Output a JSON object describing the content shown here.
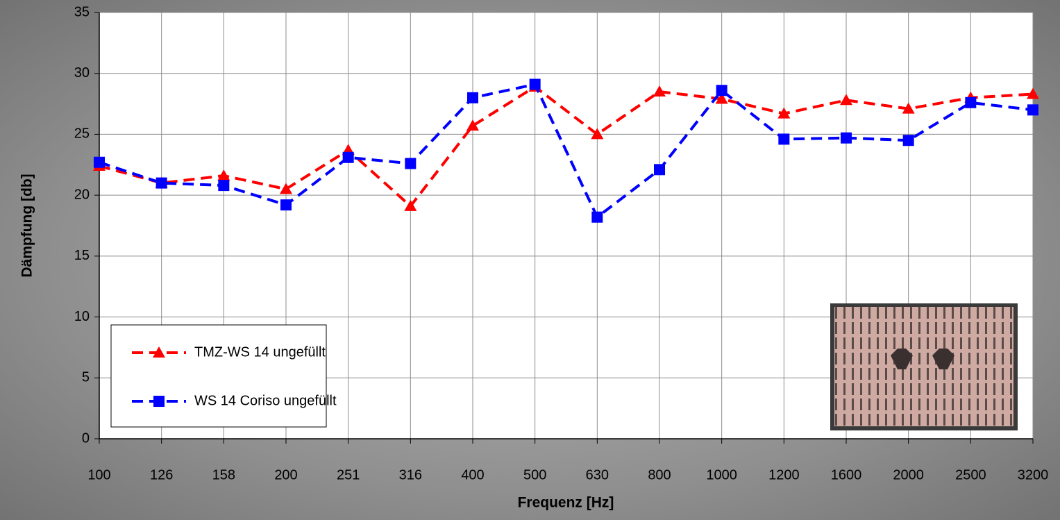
{
  "chart_data": {
    "type": "line",
    "x_label": "Frequenz [Hz]",
    "y_label": "Dämpfung [db]",
    "categories": [
      "100",
      "126",
      "158",
      "200",
      "251",
      "316",
      "400",
      "500",
      "630",
      "800",
      "1000",
      "1200",
      "1600",
      "2000",
      "2500",
      "3200"
    ],
    "series": [
      {
        "name": "TMZ-WS 14 ungefüllt",
        "color": "#ff0000",
        "marker": "triangle",
        "values": [
          22.4,
          21.0,
          21.6,
          20.5,
          23.7,
          19.1,
          25.7,
          28.9,
          25.0,
          28.5,
          27.9,
          26.7,
          27.8,
          27.1,
          28.0,
          28.3
        ]
      },
      {
        "name": "WS 14 Coriso ungefüllt",
        "color": "#0000ff",
        "marker": "square",
        "values": [
          22.7,
          21.0,
          20.8,
          19.2,
          23.1,
          22.6,
          28.0,
          29.1,
          18.2,
          22.1,
          28.6,
          24.6,
          24.7,
          24.5,
          27.6,
          27.0
        ]
      }
    ],
    "ylim": [
      0,
      35
    ],
    "yticks": [
      0,
      5,
      10,
      15,
      20,
      25,
      30,
      35
    ],
    "grid": true,
    "legend": "lower left"
  }
}
